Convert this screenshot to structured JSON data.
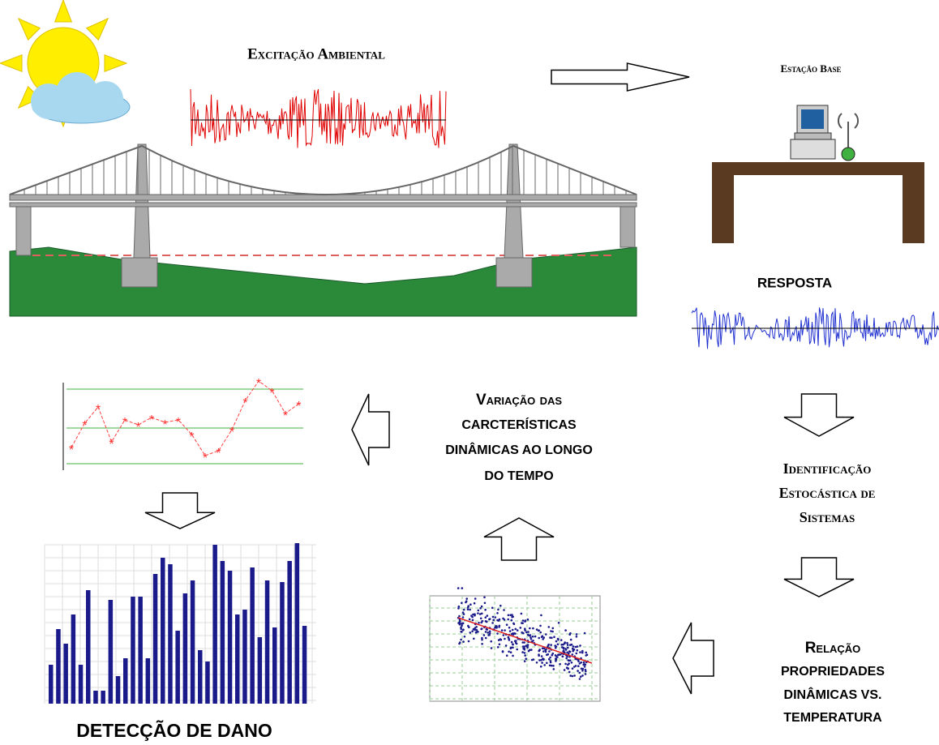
{
  "excitation": {
    "title": "Excitação Ambiental"
  },
  "base_station": {
    "title": "Estação Base"
  },
  "response": {
    "title": "RESPOSTA"
  },
  "identification": {
    "lines": [
      "Identificação",
      "Estocástica de",
      "Sistemas"
    ]
  },
  "relation": {
    "lines": [
      "Relação",
      "PROPRIEDADES",
      "DINÂMICAS VS.",
      "TEMPERATURA"
    ]
  },
  "variation": {
    "lines": [
      "Variação das",
      "CARCTERÍSTICAS",
      "DINÂMICAS AO LONGO",
      "DO TEMPO"
    ]
  },
  "damage": {
    "title": "DETECÇÃO DE DANO"
  }
}
